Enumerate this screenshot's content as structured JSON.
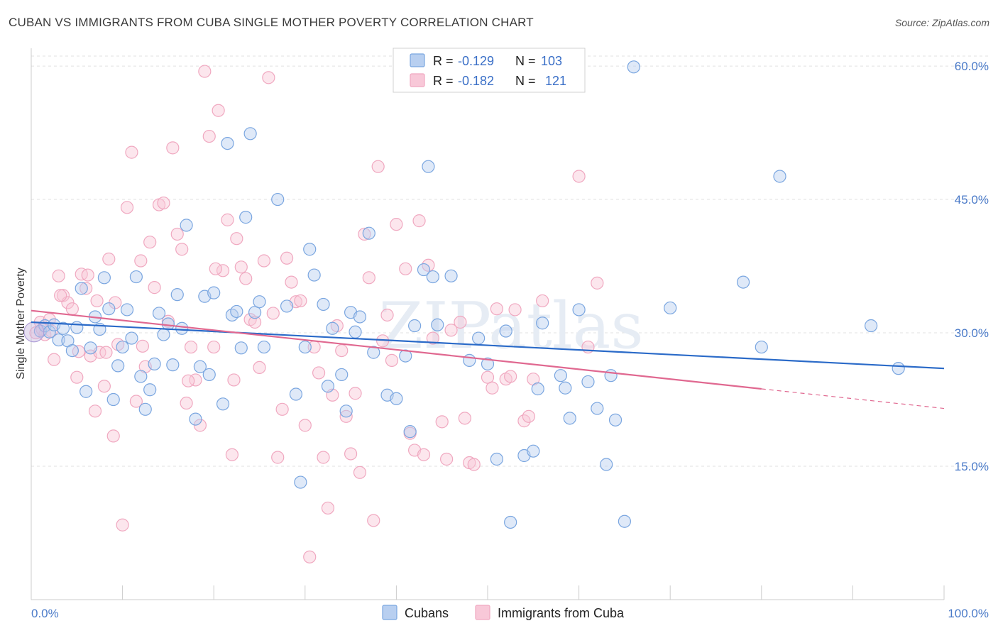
{
  "title": "CUBAN VS IMMIGRANTS FROM CUBA SINGLE MOTHER POVERTY CORRELATION CHART",
  "source": "Source: ZipAtlas.com",
  "watermark": "ZIPatlas",
  "chart_data": {
    "type": "scatter",
    "ylabel": "Single Mother Poverty",
    "xlim": [
      0,
      100
    ],
    "ylim": [
      0,
      62
    ],
    "x_ticks": [
      "0.0%",
      "100.0%"
    ],
    "y_ticks": [
      {
        "value": 15,
        "label": "15.0%"
      },
      {
        "value": 30,
        "label": "30.0%"
      },
      {
        "value": 45,
        "label": "45.0%"
      },
      {
        "value": 60,
        "label": "60.0%"
      }
    ],
    "grid": true,
    "legend_position": "top-center",
    "stats": [
      {
        "r_label": "R =",
        "r_value": "-0.129",
        "n_label": "N =",
        "n_value": "103"
      },
      {
        "r_label": "R =",
        "r_value": "-0.182",
        "n_label": "N =",
        "n_value": "121"
      }
    ],
    "series": [
      {
        "name": "Cubans",
        "color": "#7aa6e0",
        "fill": "#b8cff0",
        "line_color": "#2a6ac8",
        "trend": {
          "x0": 0,
          "y0": 31.2,
          "x1": 100,
          "y1": 26.0,
          "solid_until": 100
        },
        "points": [
          [
            1,
            30.2
          ],
          [
            1.5,
            30.8
          ],
          [
            2,
            30.1
          ],
          [
            2.5,
            30.9
          ],
          [
            3,
            29.2
          ],
          [
            3.5,
            30.5
          ],
          [
            4,
            29.1
          ],
          [
            4.5,
            28.0
          ],
          [
            5,
            30.6
          ],
          [
            5.5,
            35.0
          ],
          [
            6,
            23.4
          ],
          [
            6.5,
            28.3
          ],
          [
            7,
            31.8
          ],
          [
            7.5,
            30.4
          ],
          [
            8,
            36.2
          ],
          [
            8.5,
            32.7
          ],
          [
            9,
            22.5
          ],
          [
            9.5,
            26.3
          ],
          [
            10,
            28.4
          ],
          [
            10.5,
            32.6
          ],
          [
            11,
            29.4
          ],
          [
            11.5,
            36.3
          ],
          [
            12,
            25.1
          ],
          [
            12.5,
            21.4
          ],
          [
            13,
            23.6
          ],
          [
            13.5,
            26.5
          ],
          [
            14,
            32.2
          ],
          [
            14.5,
            29.8
          ],
          [
            15,
            31.0
          ],
          [
            15.5,
            26.4
          ],
          [
            16,
            34.3
          ],
          [
            16.5,
            30.5
          ],
          [
            17,
            42.1
          ],
          [
            18,
            20.3
          ],
          [
            18.5,
            26.2
          ],
          [
            19,
            34.1
          ],
          [
            19.5,
            25.3
          ],
          [
            20,
            34.5
          ],
          [
            21,
            22.0
          ],
          [
            21.5,
            51.3
          ],
          [
            22,
            32.0
          ],
          [
            22.5,
            32.4
          ],
          [
            23,
            28.3
          ],
          [
            23.5,
            43.0
          ],
          [
            24,
            52.4
          ],
          [
            24.5,
            32.3
          ],
          [
            25,
            33.5
          ],
          [
            25.5,
            28.4
          ],
          [
            27,
            45.0
          ],
          [
            28,
            33.0
          ],
          [
            29,
            23.1
          ],
          [
            29.5,
            13.2
          ],
          [
            30,
            28.4
          ],
          [
            30.5,
            39.4
          ],
          [
            31,
            36.5
          ],
          [
            32,
            33.2
          ],
          [
            32.5,
            24.0
          ],
          [
            33,
            30.5
          ],
          [
            34,
            25.3
          ],
          [
            34.5,
            21.2
          ],
          [
            35,
            32.3
          ],
          [
            35.5,
            30.1
          ],
          [
            36,
            31.8
          ],
          [
            37,
            41.2
          ],
          [
            37.5,
            27.8
          ],
          [
            39,
            23.0
          ],
          [
            40,
            22.6
          ],
          [
            41,
            27.4
          ],
          [
            41.5,
            18.9
          ],
          [
            42,
            30.8
          ],
          [
            43,
            37.1
          ],
          [
            43.5,
            48.7
          ],
          [
            44,
            36.3
          ],
          [
            44.5,
            30.9
          ],
          [
            46,
            36.4
          ],
          [
            48,
            26.9
          ],
          [
            49,
            29.4
          ],
          [
            50,
            26.5
          ],
          [
            51,
            15.8
          ],
          [
            52,
            30.2
          ],
          [
            52.5,
            8.7
          ],
          [
            54,
            16.2
          ],
          [
            55,
            16.7
          ],
          [
            55.5,
            23.7
          ],
          [
            56,
            31.1
          ],
          [
            58,
            25.2
          ],
          [
            58.5,
            23.8
          ],
          [
            59,
            20.4
          ],
          [
            60,
            32.6
          ],
          [
            61,
            24.5
          ],
          [
            62,
            21.5
          ],
          [
            63,
            15.2
          ],
          [
            63.5,
            25.2
          ],
          [
            64,
            20.2
          ],
          [
            65,
            8.8
          ],
          [
            66,
            59.9
          ],
          [
            70,
            32.8
          ],
          [
            78,
            35.7
          ],
          [
            80,
            28.4
          ],
          [
            82,
            47.6
          ],
          [
            92,
            30.8
          ],
          [
            95,
            26.0
          ]
        ]
      },
      {
        "name": "Immigrants from Cuba",
        "color": "#f0a8c0",
        "fill": "#f8c8d8",
        "line_color": "#e06890",
        "trend": {
          "x0": 0,
          "y0": 32.5,
          "x1": 100,
          "y1": 21.5,
          "solid_until": 80
        },
        "points": [
          [
            0.5,
            30.0
          ],
          [
            1,
            31.2
          ],
          [
            1.5,
            29.8
          ],
          [
            2,
            31.5
          ],
          [
            2.5,
            27.0
          ],
          [
            3,
            36.4
          ],
          [
            3.5,
            34.2
          ],
          [
            4,
            33.4
          ],
          [
            4.5,
            32.7
          ],
          [
            5,
            25.0
          ],
          [
            5.5,
            36.6
          ],
          [
            6,
            35.0
          ],
          [
            6.5,
            27.4
          ],
          [
            7,
            21.2
          ],
          [
            7.5,
            27.8
          ],
          [
            8,
            24.0
          ],
          [
            8.5,
            38.3
          ],
          [
            9,
            18.4
          ],
          [
            9.5,
            28.7
          ],
          [
            10,
            8.4
          ],
          [
            10.5,
            44.1
          ],
          [
            11,
            50.3
          ],
          [
            11.5,
            22.3
          ],
          [
            12,
            38.1
          ],
          [
            12.5,
            26.2
          ],
          [
            13,
            40.2
          ],
          [
            13.5,
            35.1
          ],
          [
            14,
            44.4
          ],
          [
            14.5,
            44.6
          ],
          [
            15,
            31.3
          ],
          [
            15.5,
            50.8
          ],
          [
            16,
            41.1
          ],
          [
            16.5,
            39.4
          ],
          [
            17,
            22.1
          ],
          [
            17.5,
            28.4
          ],
          [
            18,
            24.7
          ],
          [
            18.5,
            19.6
          ],
          [
            19,
            59.4
          ],
          [
            19.5,
            52.1
          ],
          [
            20,
            28.4
          ],
          [
            20.5,
            55.0
          ],
          [
            21,
            37.0
          ],
          [
            21.5,
            42.7
          ],
          [
            22,
            16.3
          ],
          [
            22.5,
            40.6
          ],
          [
            23,
            37.4
          ],
          [
            23.5,
            36.1
          ],
          [
            24,
            31.5
          ],
          [
            24.5,
            31.2
          ],
          [
            25,
            26.1
          ],
          [
            25.5,
            38.1
          ],
          [
            26,
            58.7
          ],
          [
            26.5,
            32.2
          ],
          [
            27,
            16.0
          ],
          [
            27.5,
            21.4
          ],
          [
            28,
            38.4
          ],
          [
            28.5,
            35.7
          ],
          [
            29,
            33.5
          ],
          [
            29.5,
            33.6
          ],
          [
            30,
            19.6
          ],
          [
            30.5,
            4.8
          ],
          [
            31,
            28.4
          ],
          [
            31.5,
            25.5
          ],
          [
            32,
            16.0
          ],
          [
            32.5,
            10.3
          ],
          [
            33,
            23.0
          ],
          [
            33.5,
            30.8
          ],
          [
            34,
            28.0
          ],
          [
            34.5,
            20.6
          ],
          [
            35,
            16.4
          ],
          [
            35.5,
            23.2
          ],
          [
            36,
            14.3
          ],
          [
            36.5,
            41.1
          ],
          [
            37,
            36.2
          ],
          [
            37.5,
            8.9
          ],
          [
            38,
            48.7
          ],
          [
            38.5,
            29.1
          ],
          [
            39,
            32.0
          ],
          [
            39.5,
            26.9
          ],
          [
            40,
            42.2
          ],
          [
            41,
            37.2
          ],
          [
            41.5,
            18.7
          ],
          [
            42,
            16.8
          ],
          [
            42.5,
            42.6
          ],
          [
            43,
            16.3
          ],
          [
            43.5,
            37.6
          ],
          [
            44,
            29.4
          ],
          [
            45,
            20.0
          ],
          [
            45.5,
            15.8
          ],
          [
            46,
            30.3
          ],
          [
            47,
            31.2
          ],
          [
            47.5,
            20.4
          ],
          [
            48,
            15.4
          ],
          [
            48.5,
            15.2
          ],
          [
            50,
            25.0
          ],
          [
            50.5,
            23.8
          ],
          [
            51,
            32.7
          ],
          [
            52,
            24.8
          ],
          [
            52.5,
            25.1
          ],
          [
            53,
            32.6
          ],
          [
            54,
            20.1
          ],
          [
            54.5,
            20.6
          ],
          [
            55,
            24.8
          ],
          [
            56,
            33.6
          ],
          [
            60,
            47.6
          ],
          [
            61,
            28.4
          ],
          [
            62,
            35.6
          ],
          [
            1.2,
            30.4
          ],
          [
            2.2,
            30.2
          ],
          [
            3.2,
            34.2
          ],
          [
            5.2,
            27.9
          ],
          [
            6.2,
            36.5
          ],
          [
            7.2,
            33.6
          ],
          [
            8.2,
            27.8
          ],
          [
            9.2,
            33.4
          ],
          [
            12.2,
            28.5
          ],
          [
            17.2,
            24.6
          ],
          [
            20.2,
            37.2
          ],
          [
            22.2,
            24.7
          ]
        ]
      }
    ]
  },
  "bottom_legend": [
    {
      "label": "Cubans"
    },
    {
      "label": "Immigrants from Cuba"
    }
  ]
}
